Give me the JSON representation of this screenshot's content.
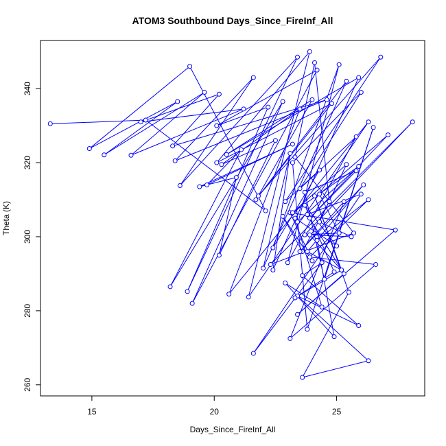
{
  "chart_data": {
    "type": "line",
    "title": "ATOM3 Southbound Days_Since_FireInf_All",
    "xlabel": "Days_Since_FireInf_All",
    "ylabel": "Theta (K)",
    "xlim": [
      12.9,
      28.6
    ],
    "ylim": [
      257,
      353
    ],
    "xticks": [
      15,
      20,
      25
    ],
    "yticks": [
      260,
      280,
      300,
      320,
      340
    ],
    "grid": false,
    "legend": "none",
    "line_color": "#0000ff",
    "marker": "open-circle",
    "x": [
      13.3,
      17.2,
      22.1,
      19.0,
      14.9,
      18.5,
      15.5,
      19.6,
      16.6,
      21.2,
      17.0,
      20.2,
      18.3,
      24.6,
      18.4,
      21.6,
      18.6,
      23.4,
      18.9,
      22.2,
      20.1,
      24.2,
      19.1,
      22.8,
      18.2,
      21.1,
      19.7,
      23.2,
      19.4,
      20.9,
      20.2,
      22.5,
      20.3,
      23.5,
      20.6,
      26.3,
      21.4,
      23.9,
      20.1,
      24.8,
      21.7,
      25.4,
      22.0,
      23.1,
      22.4,
      25.9,
      20.5,
      24.0,
      21.8,
      26.8,
      22.9,
      24.3,
      22.4,
      25.1,
      23.0,
      25.8,
      23.5,
      26.0,
      23.2,
      23.8,
      26.5,
      24.5,
      23.7,
      25.8,
      23.9,
      27.1,
      24.3,
      25.1,
      23.7,
      28.1,
      22.3,
      25.7,
      23.3,
      24.1,
      24.7,
      23.6,
      22.8,
      24.0,
      23.1,
      27.4,
      23.4,
      25.3,
      23.8,
      26.0,
      21.6,
      24.4,
      23.6,
      25.9,
      23.4,
      26.3,
      23.6,
      25.5,
      24.1,
      25.2,
      23.8,
      26.1,
      23.5,
      25.3,
      23.1,
      26.6,
      23.9,
      26.3,
      24.2,
      24.9,
      22.9,
      24.4,
      23.3,
      25.0,
      23.7,
      24.9,
      23.3,
      25.2,
      23.9,
      25.6,
      24.3,
      25.4,
      23.2,
      25.9,
      23.4
    ],
    "y": [
      330.5,
      331.5,
      307.0,
      346.0,
      323.8,
      336.5,
      322.1,
      339.0,
      322.0,
      334.5,
      331.0,
      338.5,
      324.5,
      337.0,
      320.5,
      343.0,
      313.8,
      348.5,
      285.2,
      335.0,
      330.0,
      345.0,
      282.0,
      336.5,
      286.5,
      323.5,
      314.0,
      325.0,
      313.5,
      316.0,
      295.0,
      326.0,
      319.5,
      334.5,
      284.5,
      331.0,
      283.7,
      350.0,
      320.0,
      336.0,
      310.0,
      342.0,
      291.5,
      322.5,
      291.0,
      343.0,
      322.2,
      337.0,
      311.0,
      348.5,
      309.5,
      318.0,
      297.0,
      346.5,
      293.0,
      327.0,
      313.0,
      339.0,
      320.0,
      275.0,
      329.5,
      288.5,
      312.0,
      317.8,
      305.0,
      327.5,
      311.5,
      301.0,
      300.5,
      331.0,
      292.5,
      301.0,
      321.5,
      347.0,
      309.5,
      296.0,
      305.5,
      293.5,
      306.5,
      301.8,
      279.0,
      290.0,
      306.0,
      311.5,
      268.5,
      293.0,
      289.5,
      276.0,
      284.0,
      266.5,
      262.0,
      285.0,
      311.0,
      291.0,
      296.0,
      314.0,
      296.0,
      309.5,
      272.5,
      292.5,
      294.5,
      310.0,
      299.0,
      273.0,
      287.5,
      281.0,
      305.0,
      297.5,
      308.5,
      290.5,
      283.5,
      291.0,
      300.5,
      300.0,
      304.0,
      319.5,
      306.5,
      319.0,
      304.0
    ]
  }
}
